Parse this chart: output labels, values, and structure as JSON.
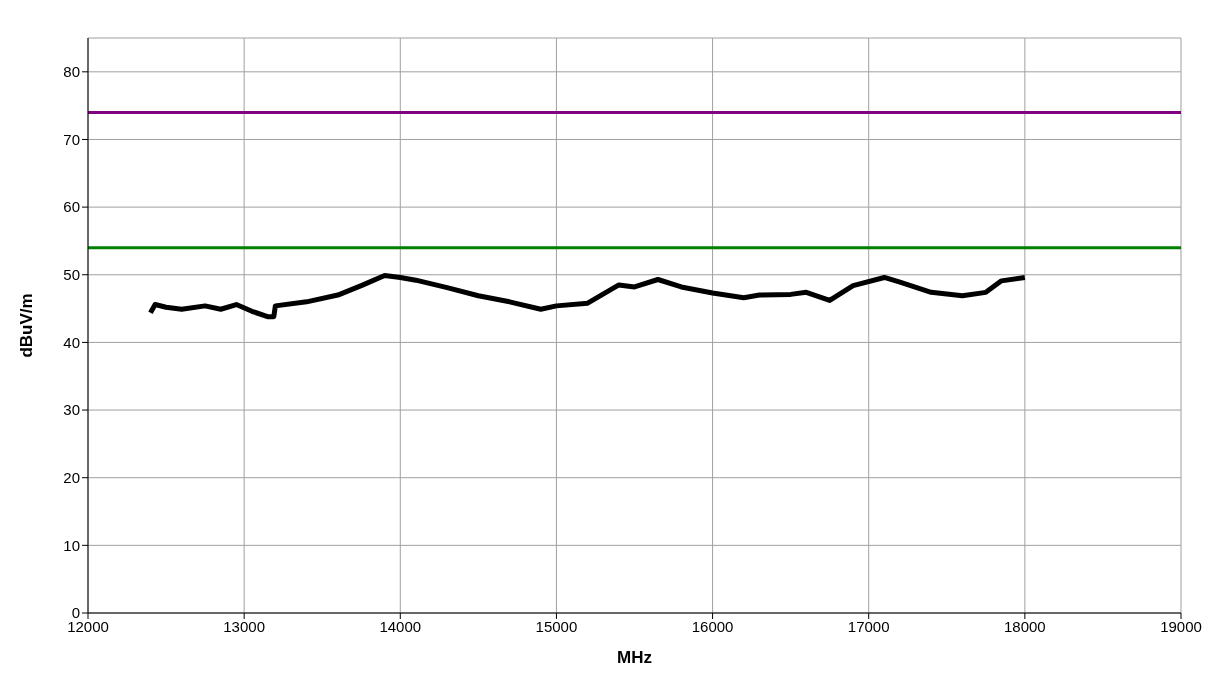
{
  "chart_data": {
    "type": "line",
    "xlabel": "MHz",
    "ylabel": "dBuV/m",
    "xlim": [
      12000,
      19000
    ],
    "xticks": [
      12000,
      13000,
      14000,
      15000,
      16000,
      17000,
      18000,
      19000
    ],
    "ylim": [
      0,
      85
    ],
    "yticks": [
      0,
      10,
      20,
      30,
      40,
      50,
      60,
      70,
      80
    ],
    "grid": true,
    "legend": false,
    "marker": "none",
    "series": [
      {
        "color": "#000000",
        "x": [
          12400,
          12430,
          12500,
          12600,
          12750,
          12850,
          12950,
          13050,
          13150,
          13190,
          13200,
          13400,
          13600,
          13750,
          13900,
          14000,
          14100,
          14300,
          14500,
          14700,
          14900,
          15000,
          15200,
          15400,
          15500,
          15650,
          15800,
          16000,
          16200,
          16300,
          16500,
          16600,
          16750,
          16900,
          17100,
          17200,
          17400,
          17600,
          17750,
          17850,
          18000
        ],
        "values": [
          44.4,
          45.6,
          45.2,
          44.9,
          45.4,
          44.9,
          45.6,
          44.6,
          43.8,
          43.8,
          45.4,
          46.0,
          47.0,
          48.4,
          49.9,
          49.6,
          49.2,
          48.1,
          46.9,
          46.0,
          44.9,
          45.4,
          45.8,
          48.5,
          48.2,
          49.3,
          48.2,
          47.3,
          46.6,
          47.0,
          47.1,
          47.4,
          46.2,
          48.4,
          49.6,
          48.9,
          47.4,
          46.9,
          47.4,
          49.1,
          49.6
        ]
      }
    ],
    "ref_lines": [
      {
        "axis": "y",
        "value": 74,
        "color": "#800080"
      },
      {
        "axis": "y",
        "value": 54,
        "color": "#008000"
      }
    ]
  }
}
